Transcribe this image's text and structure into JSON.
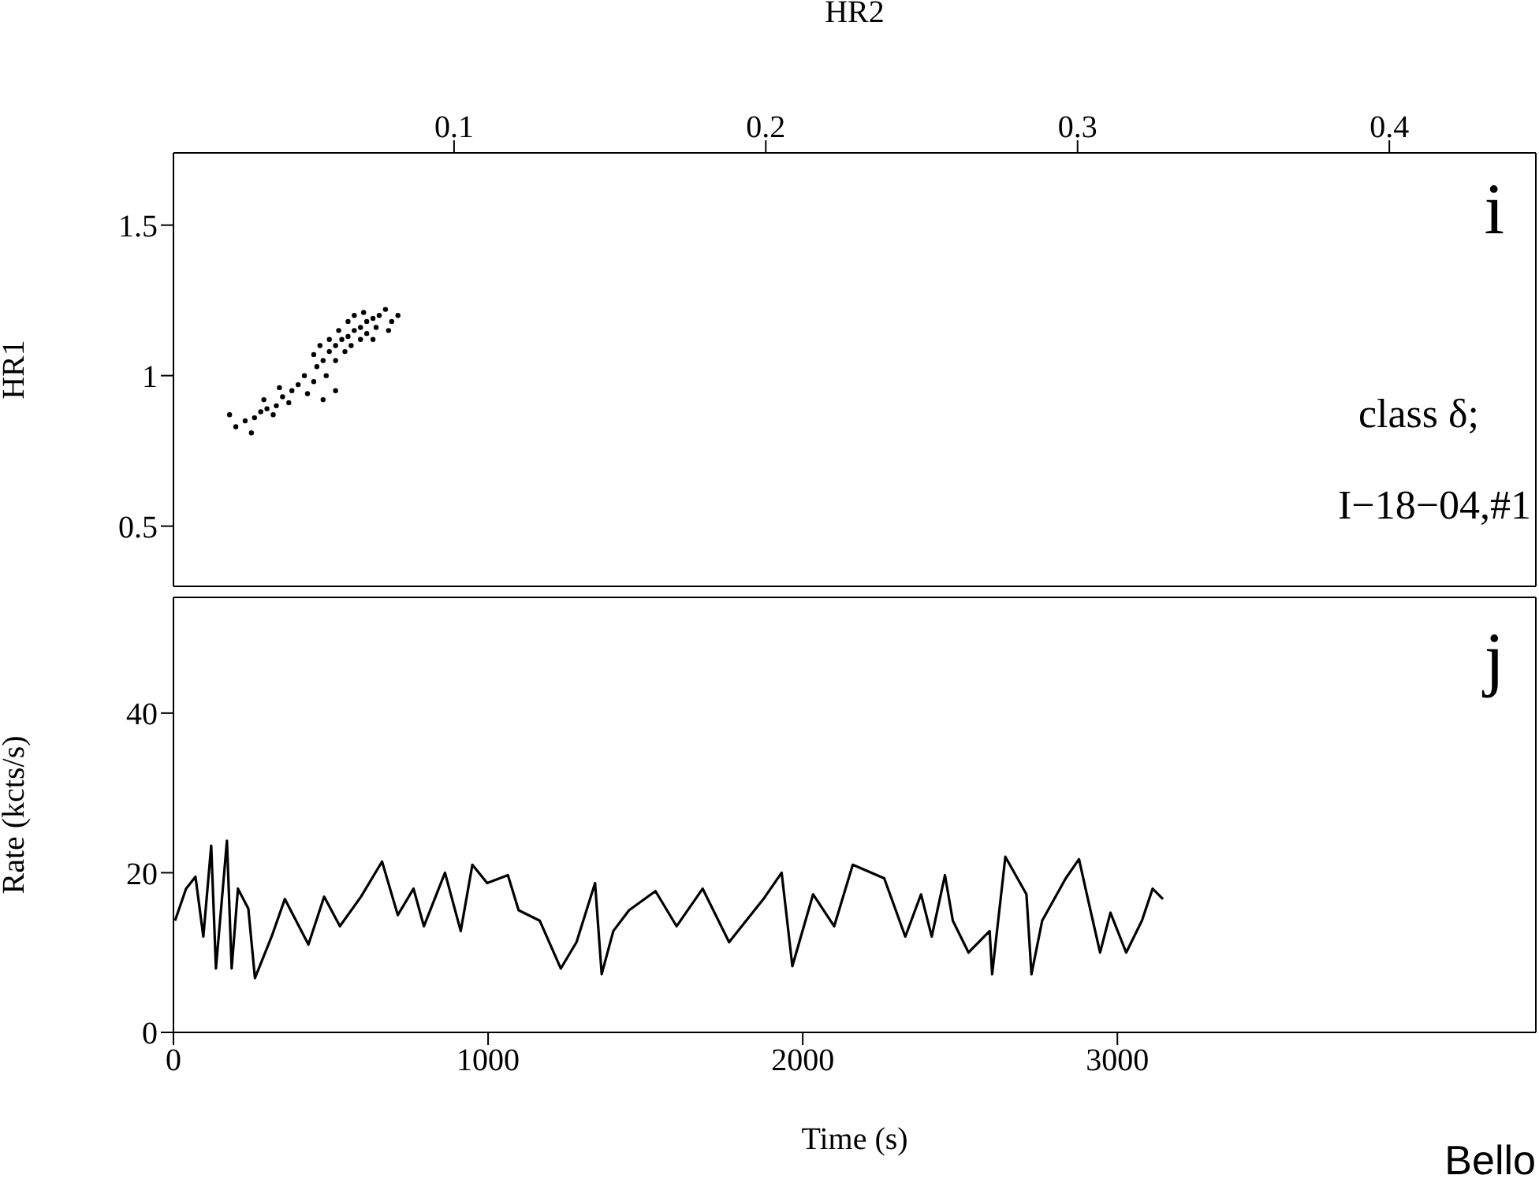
{
  "chart_data": [
    {
      "type": "scatter",
      "xlabel": "HR2",
      "ylabel": "HR1",
      "xlim": [
        0.01,
        0.447
      ],
      "xticks": [
        0.1,
        0.2,
        0.3,
        0.4
      ],
      "ylim": [
        0.3,
        1.74
      ],
      "yticks": [
        0.5,
        1,
        1.5
      ],
      "marker": "circle",
      "annotations": [
        "i",
        "class δ;",
        "I−18−04,#1"
      ],
      "series": [
        {
          "color": "#000000",
          "x": [
            0.06,
            0.062,
            0.064,
            0.066,
            0.068,
            0.07,
            0.072,
            0.058,
            0.056,
            0.074,
            0.076,
            0.065,
            0.07,
            0.06,
            0.068,
            0.063,
            0.072,
            0.075,
            0.055,
            0.078,
            0.08,
            0.062,
            0.067,
            0.071,
            0.059,
            0.082,
            0.066,
            0.074,
            0.057,
            0.079,
            0.052,
            0.05,
            0.048,
            0.045,
            0.043,
            0.04,
            0.038,
            0.036,
            0.042,
            0.047,
            0.033,
            0.03,
            0.039,
            0.053,
            0.055,
            0.035,
            0.044,
            0.058,
            0.028,
            0.062
          ],
          "values": [
            1.08,
            1.1,
            1.12,
            1.13,
            1.15,
            1.16,
            1.18,
            1.05,
            1.03,
            1.19,
            1.2,
            1.08,
            1.12,
            1.12,
            1.2,
            1.15,
            1.14,
            1.16,
            1.07,
            1.22,
            1.18,
            1.05,
            1.1,
            1.21,
            1.0,
            1.2,
            1.18,
            1.12,
            1.1,
            1.15,
            1.0,
            0.97,
            0.95,
            0.93,
            0.9,
            0.89,
            0.88,
            0.86,
            0.87,
            0.91,
            0.85,
            0.83,
            0.92,
            0.94,
            0.98,
            0.81,
            0.96,
            0.92,
            0.87,
            0.95
          ]
        }
      ]
    },
    {
      "type": "line",
      "xlabel": "Time (s)",
      "ylabel": "Rate (kcts/s)",
      "xlim": [
        0,
        4330
      ],
      "xticks": [
        0,
        1000,
        2000,
        3000
      ],
      "ylim": [
        0,
        54.5
      ],
      "yticks": [
        0,
        20,
        40
      ],
      "line_style": "solid",
      "annotations": [
        "j",
        "Bello"
      ],
      "series": [
        {
          "color": "#000000",
          "x": [
            5,
            40,
            70,
            95,
            120,
            135,
            170,
            185,
            205,
            238,
            259,
            312,
            354,
            429,
            479,
            529,
            596,
            663,
            713,
            763,
            796,
            863,
            913,
            950,
            997,
            1063,
            1097,
            1164,
            1231,
            1281,
            1340,
            1361,
            1398,
            1448,
            1532,
            1599,
            1682,
            1766,
            1875,
            1933,
            1967,
            2033,
            2100,
            2159,
            2259,
            2326,
            2376,
            2410,
            2452,
            2477,
            2527,
            2594,
            2602,
            2644,
            2711,
            2727,
            2761,
            2836,
            2878,
            2903,
            2945,
            2978,
            3028,
            3078,
            3112,
            3145
          ],
          "values": [
            14,
            18,
            19.5,
            12,
            23.4,
            8,
            24,
            8,
            18,
            15.5,
            6.8,
            12,
            16.7,
            11,
            17,
            13.3,
            17,
            21.4,
            14.7,
            18,
            13.3,
            20,
            12.7,
            21,
            18.7,
            19.7,
            15.3,
            14,
            8,
            11.3,
            18.7,
            7.3,
            12.7,
            15.3,
            17.7,
            13.3,
            18,
            11.3,
            16.7,
            20,
            8.3,
            17.3,
            13.3,
            21,
            19.3,
            12,
            17.3,
            12,
            19.7,
            14,
            10,
            12.7,
            7.3,
            22,
            17.3,
            7.3,
            14,
            19.3,
            21.7,
            17.3,
            10,
            15,
            10,
            14,
            18,
            16.7
          ]
        }
      ]
    }
  ]
}
